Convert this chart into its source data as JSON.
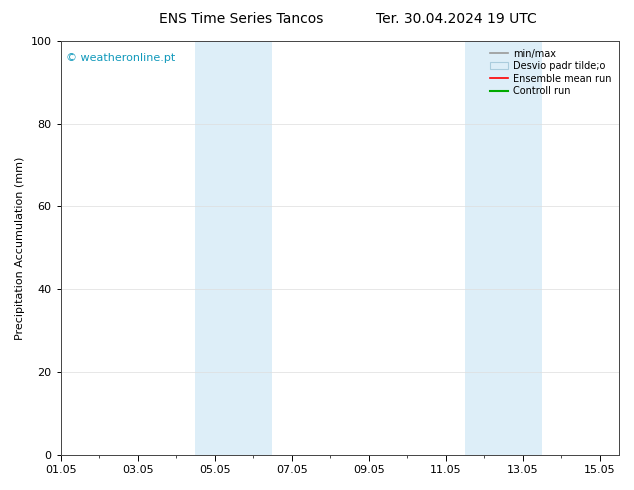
{
  "title_left": "ENS Time Series Tancos",
  "title_right": "Ter. 30.04.2024 19 UTC",
  "ylabel": "Precipitation Accumulation (mm)",
  "watermark": "© weatheronline.pt",
  "watermark_color": "#1199BB",
  "ylim": [
    0,
    100
  ],
  "yticks": [
    0,
    20,
    40,
    60,
    80,
    100
  ],
  "xtick_labels": [
    "01.05",
    "03.05",
    "05.05",
    "07.05",
    "09.05",
    "11.05",
    "13.05",
    "15.05"
  ],
  "xtick_positions": [
    0,
    2,
    4,
    6,
    8,
    10,
    12,
    14
  ],
  "xlim": [
    0,
    14.5
  ],
  "shaded_bands": [
    {
      "start": 3.5,
      "end": 5.5
    },
    {
      "start": 10.5,
      "end": 12.5
    }
  ],
  "band_color": "#ddeef8",
  "background_color": "#ffffff",
  "legend_entries": [
    {
      "label": "min/max",
      "color": "#999999",
      "lw": 1.2
    },
    {
      "label": "Desvio padr tilde;o",
      "facecolor": "#ddeef8",
      "edgecolor": "#aaccdd"
    },
    {
      "label": "Ensemble mean run",
      "color": "#ff0000",
      "lw": 1.2
    },
    {
      "label": "Controll run",
      "color": "#00aa00",
      "lw": 1.5
    }
  ],
  "grid_color": "#dddddd",
  "title_fontsize": 10,
  "label_fontsize": 8,
  "tick_fontsize": 8,
  "watermark_fontsize": 8
}
